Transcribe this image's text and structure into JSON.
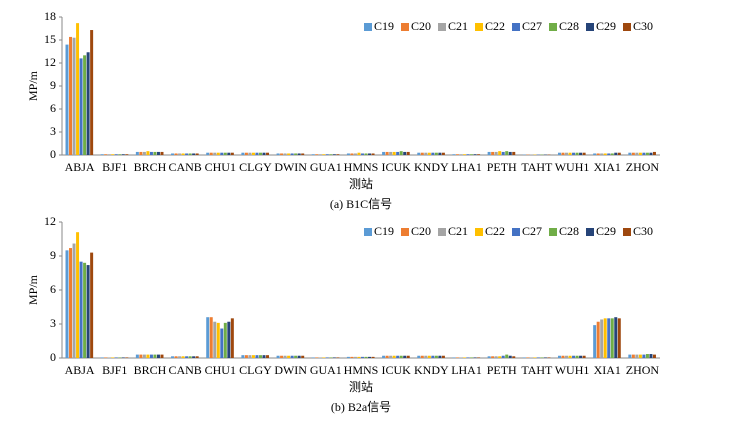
{
  "chart_data": [
    {
      "type": "bar",
      "y_label": "MP/m",
      "x_label": "测站",
      "caption": "(a) B1C信号",
      "categories": [
        "ABJA",
        "BJF1",
        "BRCH",
        "CANB",
        "CHU1",
        "CLGY",
        "DWIN",
        "GUA1",
        "HMNS",
        "ICUK",
        "KNDY",
        "LHA1",
        "PETH",
        "TAHT",
        "WUH1",
        "XIA1",
        "ZHON"
      ],
      "ylim": [
        0,
        18
      ],
      "yticks": [
        0,
        3,
        6,
        9,
        12,
        15,
        18
      ],
      "legend": "top-right",
      "series": [
        {
          "name": "C19",
          "color": "#5b9bd5",
          "values": [
            14.4,
            0.1,
            0.4,
            0.2,
            0.3,
            0.3,
            0.2,
            0.1,
            0.2,
            0.4,
            0.3,
            0.1,
            0.4,
            0.05,
            0.3,
            0.2,
            0.3
          ]
        },
        {
          "name": "C20",
          "color": "#ed7d31",
          "values": [
            15.4,
            0.1,
            0.4,
            0.2,
            0.3,
            0.3,
            0.2,
            0.1,
            0.2,
            0.4,
            0.3,
            0.1,
            0.4,
            0.05,
            0.3,
            0.2,
            0.3
          ]
        },
        {
          "name": "C21",
          "color": "#a5a5a5",
          "values": [
            15.3,
            0.1,
            0.4,
            0.2,
            0.3,
            0.3,
            0.2,
            0.1,
            0.2,
            0.4,
            0.3,
            0.1,
            0.4,
            0.05,
            0.3,
            0.2,
            0.3
          ]
        },
        {
          "name": "C22",
          "color": "#ffc000",
          "values": [
            17.2,
            0.1,
            0.5,
            0.2,
            0.3,
            0.3,
            0.2,
            0.1,
            0.3,
            0.4,
            0.3,
            0.1,
            0.5,
            0.05,
            0.3,
            0.2,
            0.3
          ]
        },
        {
          "name": "C27",
          "color": "#4472c4",
          "values": [
            12.6,
            0.1,
            0.4,
            0.2,
            0.3,
            0.3,
            0.2,
            0.1,
            0.2,
            0.4,
            0.3,
            0.1,
            0.4,
            0.05,
            0.3,
            0.2,
            0.3
          ]
        },
        {
          "name": "C28",
          "color": "#70ad47",
          "values": [
            13.0,
            0.1,
            0.4,
            0.2,
            0.3,
            0.3,
            0.2,
            0.1,
            0.2,
            0.5,
            0.3,
            0.1,
            0.5,
            0.05,
            0.3,
            0.2,
            0.3
          ]
        },
        {
          "name": "C29",
          "color": "#264478",
          "values": [
            13.4,
            0.1,
            0.4,
            0.2,
            0.3,
            0.3,
            0.2,
            0.1,
            0.2,
            0.4,
            0.3,
            0.1,
            0.4,
            0.05,
            0.3,
            0.3,
            0.3
          ]
        },
        {
          "name": "C30",
          "color": "#9e480e",
          "values": [
            16.3,
            0.1,
            0.4,
            0.2,
            0.3,
            0.3,
            0.2,
            0.1,
            0.2,
            0.4,
            0.3,
            0.1,
            0.4,
            0.05,
            0.3,
            0.3,
            0.4
          ]
        }
      ]
    },
    {
      "type": "bar",
      "y_label": "MP/m",
      "x_label": "测站",
      "caption": "(b) B2a信号",
      "categories": [
        "ABJA",
        "BJF1",
        "BRCH",
        "CANB",
        "CHU1",
        "CLGY",
        "DWIN",
        "GUA1",
        "HMNS",
        "ICUK",
        "KNDY",
        "LHA1",
        "PETH",
        "TAHT",
        "WUH1",
        "XIA1",
        "ZHON"
      ],
      "ylim": [
        0,
        12
      ],
      "yticks": [
        0,
        3,
        6,
        9,
        12
      ],
      "legend": "top-right",
      "series": [
        {
          "name": "C19",
          "color": "#5b9bd5",
          "values": [
            9.5,
            0.05,
            0.3,
            0.15,
            3.6,
            0.25,
            0.2,
            0.05,
            0.1,
            0.2,
            0.2,
            0.05,
            0.15,
            0.05,
            0.2,
            2.9,
            0.3
          ]
        },
        {
          "name": "C20",
          "color": "#ed7d31",
          "values": [
            9.7,
            0.05,
            0.3,
            0.15,
            3.6,
            0.25,
            0.2,
            0.05,
            0.1,
            0.2,
            0.2,
            0.05,
            0.15,
            0.05,
            0.2,
            3.2,
            0.3
          ]
        },
        {
          "name": "C21",
          "color": "#a5a5a5",
          "values": [
            10.1,
            0.05,
            0.3,
            0.15,
            3.2,
            0.25,
            0.2,
            0.05,
            0.1,
            0.2,
            0.2,
            0.05,
            0.15,
            0.05,
            0.2,
            3.4,
            0.3
          ]
        },
        {
          "name": "C22",
          "color": "#ffc000",
          "values": [
            11.1,
            0.05,
            0.3,
            0.15,
            3.1,
            0.25,
            0.2,
            0.05,
            0.1,
            0.2,
            0.2,
            0.05,
            0.15,
            0.05,
            0.2,
            3.5,
            0.3
          ]
        },
        {
          "name": "C27",
          "color": "#4472c4",
          "values": [
            8.5,
            0.05,
            0.3,
            0.15,
            2.6,
            0.25,
            0.2,
            0.05,
            0.1,
            0.2,
            0.2,
            0.05,
            0.2,
            0.05,
            0.2,
            3.5,
            0.3
          ]
        },
        {
          "name": "C28",
          "color": "#70ad47",
          "values": [
            8.4,
            0.05,
            0.3,
            0.15,
            3.1,
            0.25,
            0.2,
            0.05,
            0.1,
            0.2,
            0.2,
            0.05,
            0.3,
            0.05,
            0.2,
            3.5,
            0.35
          ]
        },
        {
          "name": "C29",
          "color": "#264478",
          "values": [
            8.2,
            0.05,
            0.3,
            0.15,
            3.2,
            0.25,
            0.2,
            0.05,
            0.1,
            0.2,
            0.2,
            0.05,
            0.2,
            0.05,
            0.2,
            3.6,
            0.35
          ]
        },
        {
          "name": "C30",
          "color": "#9e480e",
          "values": [
            9.3,
            0.05,
            0.3,
            0.15,
            3.5,
            0.25,
            0.2,
            0.05,
            0.1,
            0.2,
            0.2,
            0.05,
            0.15,
            0.05,
            0.2,
            3.5,
            0.3
          ]
        }
      ]
    }
  ]
}
